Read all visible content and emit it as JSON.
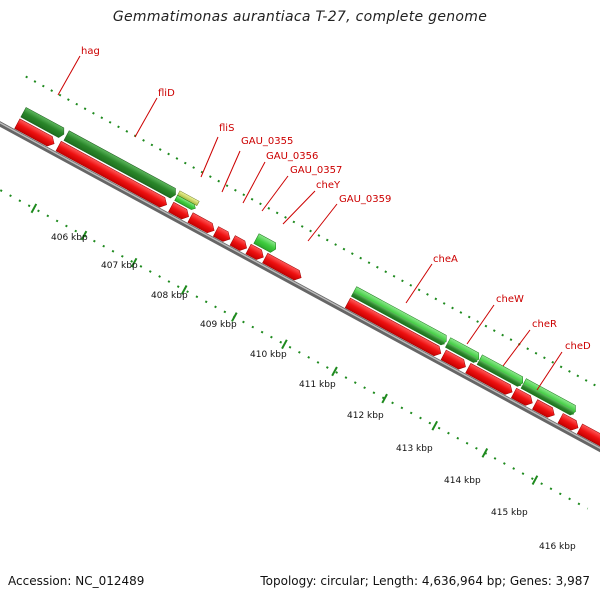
{
  "title": "Gemmatimonas aurantiaca T-27, complete genome",
  "footer": {
    "accession": "Accession: NC_012489",
    "summary": "Topology: circular; Length: 4,636,964 bp; Genes: 3,987"
  },
  "colors": {
    "reverse_gene": "#ee1111",
    "forward_gene_dark": "#2e8b2e",
    "forward_gene_light": "#44cc44",
    "forward_gene_yellow": "#c8d85a",
    "backbone": "#888888",
    "label": "#cc0000",
    "tick": "#1e8a1e"
  },
  "tick_labels": [
    "406 kbp",
    "407 kbp",
    "408 kbp",
    "409 kbp",
    "410 kbp",
    "411 kbp",
    "412 kbp",
    "413 kbp",
    "414 kbp",
    "415 kbp",
    "416 kbp"
  ],
  "gene_labels": [
    "hag",
    "fliD",
    "fliS",
    "GAU_0355",
    "GAU_0356",
    "GAU_0357",
    "cheY",
    "GAU_0359",
    "cheA",
    "cheW",
    "cheR",
    "cheD"
  ]
}
